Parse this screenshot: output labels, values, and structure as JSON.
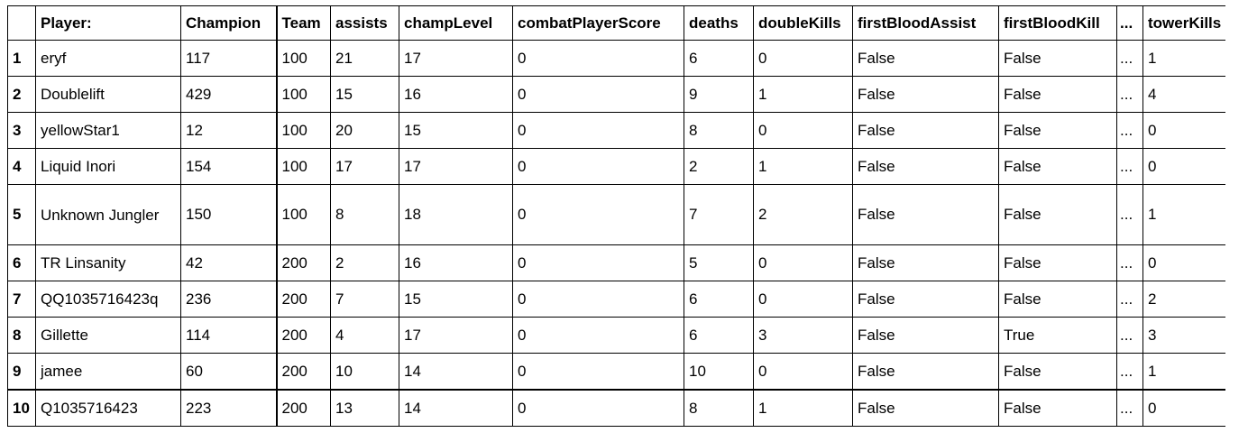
{
  "table": {
    "columns": [
      "",
      "Player:",
      "Champion",
      "Team",
      "assists",
      "champLevel",
      "combatPlayerScore",
      "deaths",
      "doubleKills",
      "firstBloodAssist",
      "firstBloodKill",
      "...",
      "towerKills"
    ],
    "rows": [
      [
        "1",
        "eryf",
        "117",
        "100",
        "21",
        "17",
        "0",
        "6",
        "0",
        "False",
        "False",
        "...",
        "1"
      ],
      [
        "2",
        "Doublelift",
        "429",
        "100",
        "15",
        "16",
        "0",
        "9",
        "1",
        "False",
        "False",
        "...",
        "4"
      ],
      [
        "3",
        "yellowStar1",
        "12",
        "100",
        "20",
        "15",
        "0",
        "8",
        "0",
        "False",
        "False",
        "...",
        "0"
      ],
      [
        "4",
        "Liquid Inori",
        "154",
        "100",
        "17",
        "17",
        "0",
        "2",
        "1",
        "False",
        "False",
        "...",
        "0"
      ],
      [
        "5",
        "Unknown Jungler",
        "150",
        "100",
        "8",
        "18",
        "0",
        "7",
        "2",
        "False",
        "False",
        "...",
        "1"
      ],
      [
        "6",
        "TR Linsanity",
        "42",
        "200",
        "2",
        "16",
        "0",
        "5",
        "0",
        "False",
        "False",
        "...",
        "0"
      ],
      [
        "7",
        "QQ1035716423q",
        "236",
        "200",
        "7",
        "15",
        "0",
        "6",
        "0",
        "False",
        "False",
        "...",
        "2"
      ],
      [
        "8",
        "Gillette",
        "114",
        "200",
        "4",
        "17",
        "0",
        "6",
        "3",
        "False",
        "True",
        "...",
        "3"
      ],
      [
        "9",
        "jamee",
        "60",
        "200",
        "10",
        "14",
        "0",
        "10",
        "0",
        "False",
        "False",
        "...",
        "1"
      ],
      [
        "10",
        "Q1035716423",
        "223",
        "200",
        "13",
        "14",
        "0",
        "8",
        "1",
        "False",
        "False",
        "...",
        "0"
      ]
    ]
  }
}
